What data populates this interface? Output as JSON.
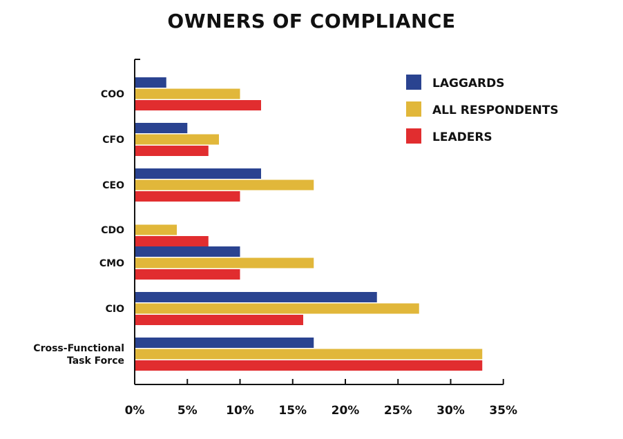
{
  "chart_data": {
    "type": "bar",
    "orientation": "horizontal",
    "title": "OWNERS OF COMPLIANCE",
    "categories": [
      "COO",
      "CFO",
      "CEO",
      "CDO",
      "CMO",
      "CIO",
      "Cross-Functional Task Force"
    ],
    "series": [
      {
        "name": "LAGGARDS",
        "color": "#2a4390",
        "values": [
          3,
          5,
          12,
          0,
          10,
          23,
          17
        ]
      },
      {
        "name": "ALL RESPONDENTS",
        "color": "#e1b73a",
        "values": [
          10,
          8,
          17,
          4,
          17,
          27,
          33
        ]
      },
      {
        "name": "LEADERS",
        "color": "#e12d2f",
        "values": [
          12,
          7,
          10,
          7,
          10,
          16,
          33
        ]
      }
    ],
    "x_ticks": [
      "0%",
      "5%",
      "10%",
      "15%",
      "20%",
      "25%",
      "30%",
      "35%"
    ],
    "xlim": [
      0,
      35
    ],
    "legend_position": "top-right",
    "grid": false
  }
}
